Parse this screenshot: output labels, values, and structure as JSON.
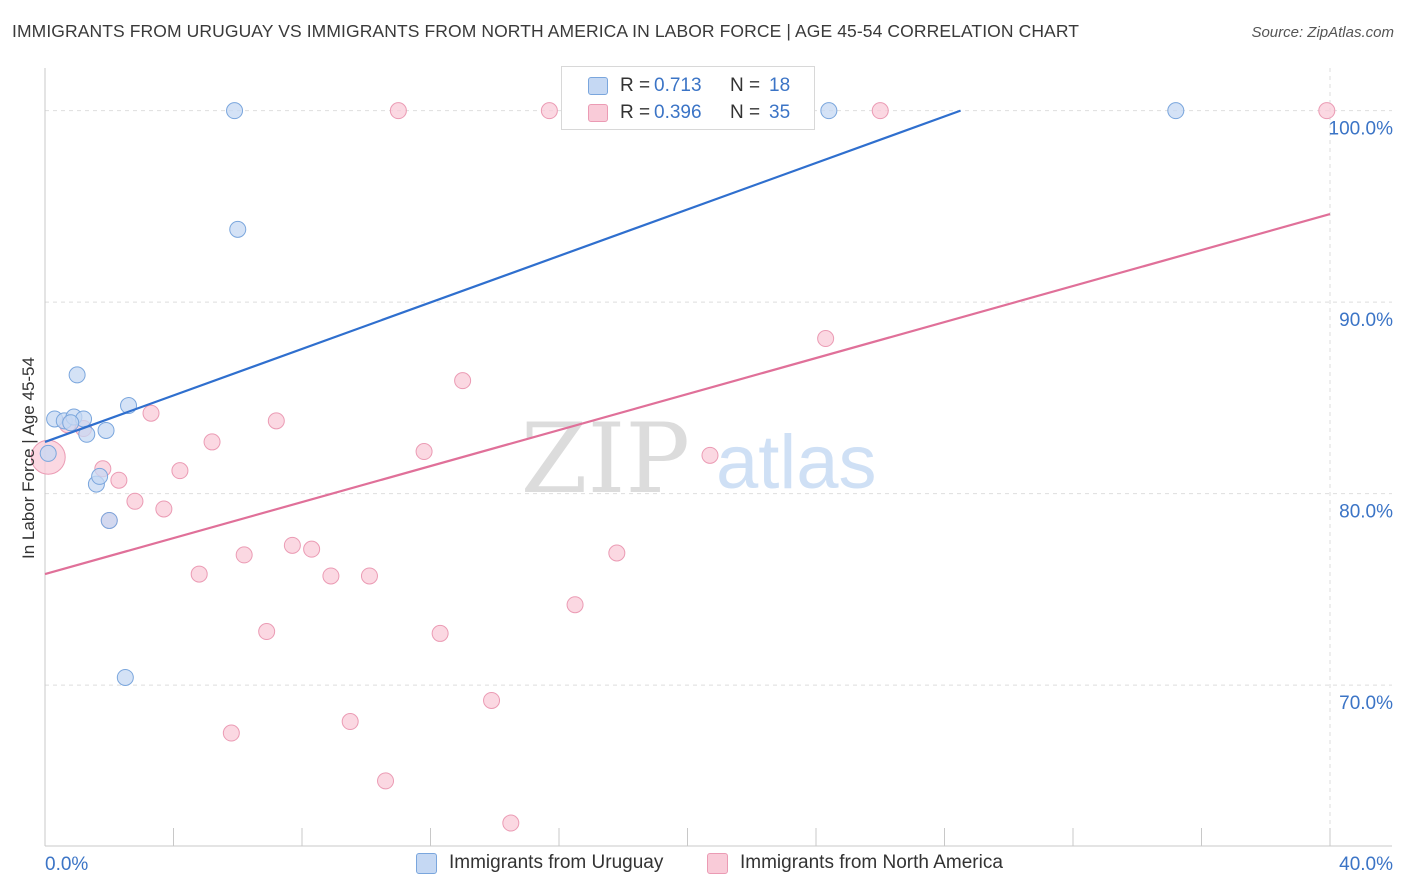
{
  "title": "IMMIGRANTS FROM URUGUAY VS IMMIGRANTS FROM NORTH AMERICA IN LABOR FORCE | AGE 45-54 CORRELATION CHART",
  "source": "Source: ZipAtlas.com",
  "watermark": {
    "zip": "ZIP",
    "atlas": "atlas"
  },
  "legend": {
    "r_label": "R =",
    "n_label": "N =",
    "series": [
      {
        "name": "Immigrants from Uruguay",
        "r": "0.713",
        "n": "18"
      },
      {
        "name": "Immigrants from North America",
        "r": "0.396",
        "n": "35"
      }
    ]
  },
  "colors": {
    "uruguay_fill": "#c5d8f3",
    "uruguay_stroke": "#7aa6dd",
    "uruguay_line": "#2f6fce",
    "north_america_fill": "#f9cbd8",
    "north_america_stroke": "#eb9bb4",
    "north_america_line": "#e07099",
    "axis_value": "#3b74c6",
    "grid": "#dedede"
  },
  "chart_data": {
    "type": "scatter",
    "title": "IMMIGRANTS FROM URUGUAY VS IMMIGRANTS FROM NORTH AMERICA IN LABOR FORCE | AGE 45-54 CORRELATION CHART",
    "xlabel": "",
    "ylabel": "In Labor Force | Age 45-54",
    "xlim": [
      0,
      40
    ],
    "ylim": [
      61.6,
      101.6
    ],
    "x_tick_labels": [
      "0.0%",
      "40.0%"
    ],
    "y_ticks": [
      70,
      80,
      90,
      100
    ],
    "y_tick_labels": [
      "70.0%",
      "80.0%",
      "90.0%",
      "100.0%"
    ],
    "grid": true,
    "series": [
      {
        "name": "Immigrants from Uruguay",
        "r": 0.713,
        "n": 18,
        "trend": {
          "x": [
            0,
            28.5
          ],
          "y": [
            82.7,
            100.0
          ]
        },
        "points": [
          {
            "x": 0.1,
            "y": 82.1,
            "big": false
          },
          {
            "x": 0.3,
            "y": 83.9,
            "big": false
          },
          {
            "x": 0.6,
            "y": 83.8,
            "big": false
          },
          {
            "x": 0.9,
            "y": 84.0,
            "big": false
          },
          {
            "x": 1.0,
            "y": 86.2,
            "big": false
          },
          {
            "x": 1.2,
            "y": 83.9,
            "big": false
          },
          {
            "x": 1.3,
            "y": 83.1,
            "big": false
          },
          {
            "x": 1.6,
            "y": 80.5,
            "big": false
          },
          {
            "x": 1.7,
            "y": 80.9,
            "big": false
          },
          {
            "x": 1.9,
            "y": 83.3,
            "big": false
          },
          {
            "x": 2.0,
            "y": 78.6,
            "big": false
          },
          {
            "x": 2.6,
            "y": 84.6,
            "big": false
          },
          {
            "x": 2.5,
            "y": 70.4,
            "big": false
          },
          {
            "x": 5.9,
            "y": 100.0,
            "big": false
          },
          {
            "x": 6.0,
            "y": 93.8,
            "big": false
          },
          {
            "x": 24.4,
            "y": 100.0,
            "big": false
          },
          {
            "x": 35.2,
            "y": 100.0,
            "big": false
          },
          {
            "x": 0.8,
            "y": 83.7,
            "big": false
          }
        ]
      },
      {
        "name": "Immigrants from North America",
        "r": 0.396,
        "n": 35,
        "trend": {
          "x": [
            0,
            40
          ],
          "y": [
            75.8,
            94.6
          ]
        },
        "points": [
          {
            "x": 0.1,
            "y": 81.9,
            "big": true
          },
          {
            "x": 0.7,
            "y": 83.6,
            "big": false
          },
          {
            "x": 1.2,
            "y": 83.4,
            "big": false
          },
          {
            "x": 1.8,
            "y": 81.3,
            "big": false
          },
          {
            "x": 2.3,
            "y": 80.7,
            "big": false
          },
          {
            "x": 2.8,
            "y": 79.6,
            "big": false
          },
          {
            "x": 3.3,
            "y": 84.2,
            "big": false
          },
          {
            "x": 3.7,
            "y": 79.2,
            "big": false
          },
          {
            "x": 4.2,
            "y": 81.2,
            "big": false
          },
          {
            "x": 4.8,
            "y": 75.8,
            "big": false
          },
          {
            "x": 5.2,
            "y": 82.7,
            "big": false
          },
          {
            "x": 5.8,
            "y": 67.5,
            "big": false
          },
          {
            "x": 6.2,
            "y": 76.8,
            "big": false
          },
          {
            "x": 6.9,
            "y": 72.8,
            "big": false
          },
          {
            "x": 7.2,
            "y": 83.8,
            "big": false
          },
          {
            "x": 7.7,
            "y": 77.3,
            "big": false
          },
          {
            "x": 8.3,
            "y": 77.1,
            "big": false
          },
          {
            "x": 8.9,
            "y": 75.7,
            "big": false
          },
          {
            "x": 9.5,
            "y": 68.1,
            "big": false
          },
          {
            "x": 10.1,
            "y": 75.7,
            "big": false
          },
          {
            "x": 10.6,
            "y": 65.0,
            "big": false
          },
          {
            "x": 11.0,
            "y": 100.0,
            "big": false
          },
          {
            "x": 11.8,
            "y": 82.2,
            "big": false
          },
          {
            "x": 12.3,
            "y": 72.7,
            "big": false
          },
          {
            "x": 13.0,
            "y": 85.9,
            "big": false
          },
          {
            "x": 13.9,
            "y": 69.2,
            "big": false
          },
          {
            "x": 14.5,
            "y": 62.8,
            "big": false
          },
          {
            "x": 15.7,
            "y": 100.0,
            "big": false
          },
          {
            "x": 16.5,
            "y": 74.2,
            "big": false
          },
          {
            "x": 17.8,
            "y": 76.9,
            "big": false
          },
          {
            "x": 20.7,
            "y": 82.0,
            "big": false
          },
          {
            "x": 24.3,
            "y": 88.1,
            "big": false
          },
          {
            "x": 26.0,
            "y": 100.0,
            "big": false
          },
          {
            "x": 39.9,
            "y": 100.0,
            "big": false
          },
          {
            "x": 2.0,
            "y": 78.6,
            "big": false
          }
        ]
      }
    ]
  }
}
